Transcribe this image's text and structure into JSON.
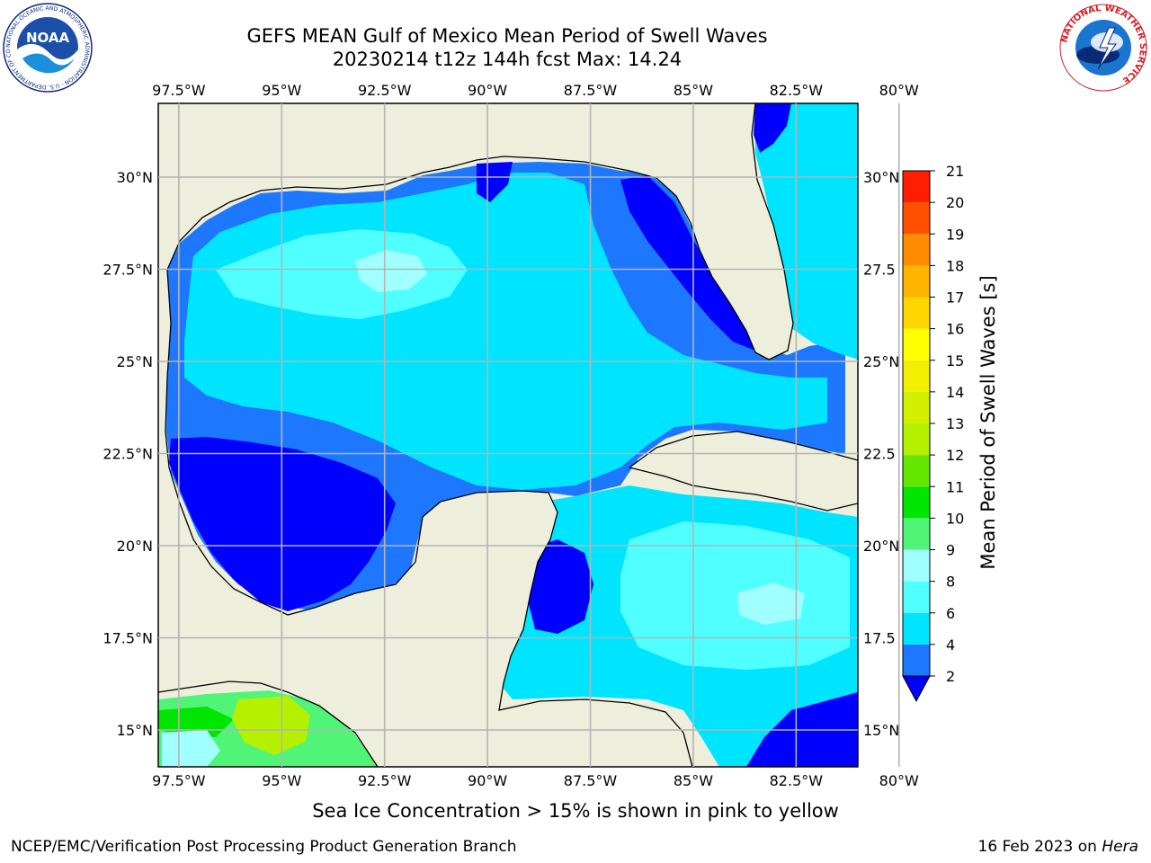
{
  "title_line1": "GEFS MEAN Gulf of Mexico Mean Period of Swell Waves",
  "title_line2": "20230214 t12z 144h fcst   Max: 14.24",
  "footnote": "Sea Ice Concentration > 15% is shown in pink to yellow",
  "credit_left": "NCEP/EMC/Verification Post Processing Product Generation Branch",
  "credit_right_date": "16 Feb 2023 on ",
  "credit_right_host": "Hera",
  "logos": {
    "noaa_text": "NOAA",
    "noaa_ring_text": "NATIONAL OCEANIC AND ATMOSPHERIC ADMINISTRATION · U.S. DEPARTMENT OF COMMERCE",
    "nws_ring_text": "NATIONAL WEATHER SERVICE"
  },
  "chart_data": {
    "type": "heatmap",
    "title": "GEFS MEAN Gulf of Mexico Mean Period of Swell Waves",
    "subtitle": "20230214 t12z 144h fcst   Max: 14.24",
    "xlabel": "",
    "ylabel": "",
    "colorbar_label": "Mean Period of Swell Waves [s]",
    "xlim": [
      -98,
      -81
    ],
    "ylim": [
      14,
      32
    ],
    "x_ticks": [
      -97.5,
      -95,
      -92.5,
      -90,
      -87.5,
      -85,
      -82.5,
      -80
    ],
    "x_tick_labels": [
      "97.5°W",
      "95°W",
      "92.5°W",
      "90°W",
      "87.5°W",
      "85°W",
      "82.5°W",
      "80°W"
    ],
    "y_ticks": [
      15,
      17.5,
      20,
      22.5,
      25,
      27.5,
      30
    ],
    "y_tick_labels_left": [
      "15°N",
      "17.5°N",
      "20°N",
      "22.5°N",
      "25°N",
      "27.5°N",
      "30°N"
    ],
    "y_tick_labels_right": [
      "15°N",
      "17.5",
      "20°N",
      "22.5",
      "25°N",
      "27.5",
      "30°N"
    ],
    "grid": true,
    "colorbar_levels": [
      2,
      4,
      6,
      8,
      9,
      10,
      11,
      12,
      13,
      14,
      15,
      16,
      17,
      18,
      19,
      20,
      21
    ],
    "colorbar_colors": [
      "#0000ff",
      "#1e78ff",
      "#00e5ff",
      "#50ffff",
      "#a0ffff",
      "#50f578",
      "#00e600",
      "#64e600",
      "#b4f000",
      "#d2f000",
      "#f0f000",
      "#ffff00",
      "#ffd700",
      "#ffb400",
      "#ff8c00",
      "#ff5000",
      "#ff1e00"
    ],
    "colorbar_extend": "min",
    "max_value": 14.24,
    "field_colors": {
      "land": "#eeeedc",
      "level_2": "#0000ff",
      "level_4": "#1e78ff",
      "level_6": "#00e5ff",
      "level_8": "#50ffff",
      "level_9": "#a0ffff",
      "level_10": "#50f578",
      "level_11": "#00e600",
      "level_13": "#b4f000"
    }
  }
}
